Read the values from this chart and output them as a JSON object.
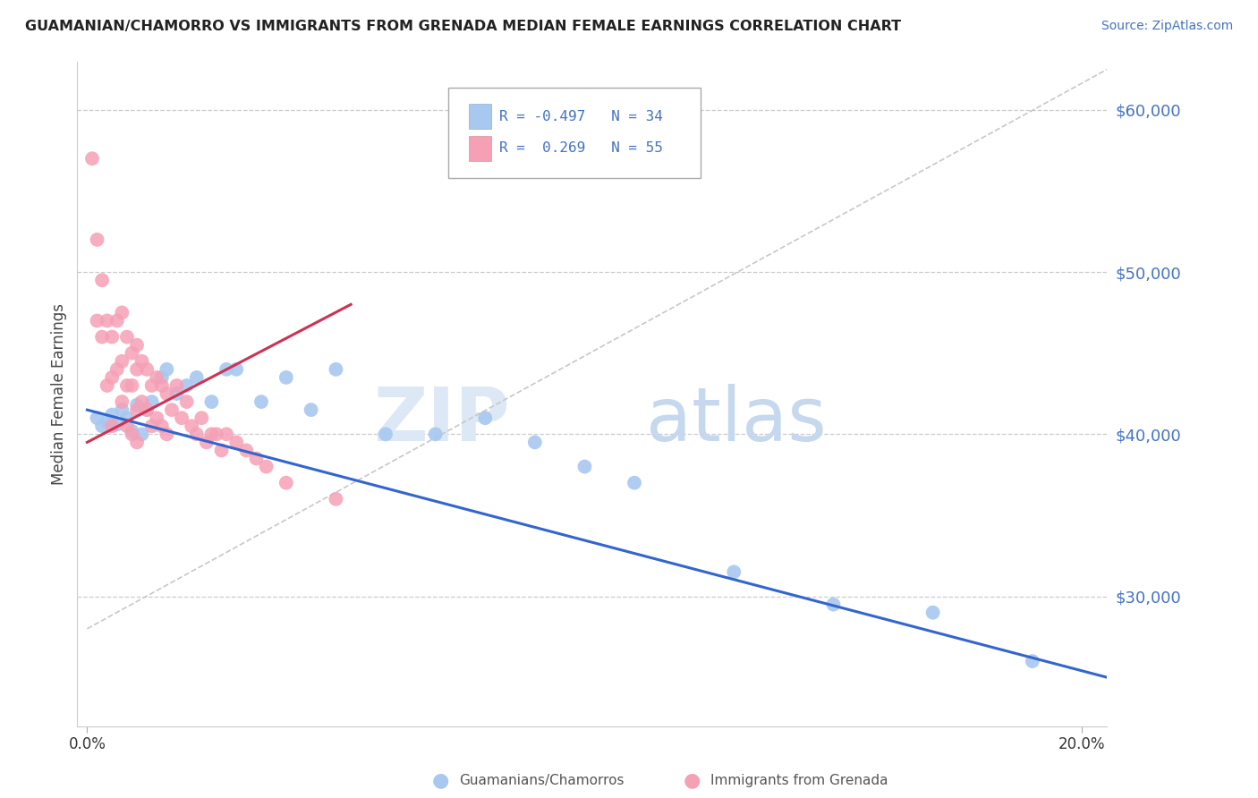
{
  "title": "GUAMANIAN/CHAMORRO VS IMMIGRANTS FROM GRENADA MEDIAN FEMALE EARNINGS CORRELATION CHART",
  "source": "Source: ZipAtlas.com",
  "ylabel": "Median Female Earnings",
  "xlabel": "",
  "xlim": [
    0.0,
    0.205
  ],
  "ylim": [
    22000,
    63000
  ],
  "yticks": [
    30000,
    40000,
    50000,
    60000
  ],
  "ytick_labels": [
    "$30,000",
    "$40,000",
    "$50,000",
    "$60,000"
  ],
  "xtick_labels": [
    "0.0%",
    "20.0%"
  ],
  "xtick_vals": [
    0.0,
    0.2
  ],
  "legend_label1": "Guamanians/Chamorros",
  "legend_label2": "Immigrants from Grenada",
  "R1": -0.497,
  "N1": 34,
  "R2": 0.269,
  "N2": 55,
  "color_blue": "#a8c8f0",
  "color_pink": "#f5a0b5",
  "line_color_blue": "#3366cc",
  "line_color_pink": "#cc3355",
  "blue_points_x": [
    0.002,
    0.003,
    0.004,
    0.005,
    0.006,
    0.007,
    0.008,
    0.009,
    0.01,
    0.011,
    0.012,
    0.013,
    0.015,
    0.016,
    0.018,
    0.02,
    0.022,
    0.025,
    0.028,
    0.03,
    0.035,
    0.04,
    0.045,
    0.05,
    0.06,
    0.07,
    0.08,
    0.09,
    0.1,
    0.11,
    0.13,
    0.15,
    0.17,
    0.19
  ],
  "blue_points_y": [
    41000,
    40500,
    40800,
    41200,
    40600,
    41500,
    41000,
    40200,
    41800,
    40000,
    41500,
    42000,
    43500,
    44000,
    42500,
    43000,
    43500,
    42000,
    44000,
    44000,
    42000,
    43500,
    41500,
    44000,
    40000,
    40000,
    41000,
    39500,
    38000,
    37000,
    31500,
    29500,
    29000,
    26000
  ],
  "pink_points_x": [
    0.001,
    0.002,
    0.002,
    0.003,
    0.003,
    0.004,
    0.004,
    0.005,
    0.005,
    0.005,
    0.006,
    0.006,
    0.007,
    0.007,
    0.007,
    0.008,
    0.008,
    0.008,
    0.009,
    0.009,
    0.009,
    0.01,
    0.01,
    0.01,
    0.01,
    0.011,
    0.011,
    0.012,
    0.012,
    0.013,
    0.013,
    0.014,
    0.014,
    0.015,
    0.015,
    0.016,
    0.016,
    0.017,
    0.018,
    0.019,
    0.02,
    0.021,
    0.022,
    0.023,
    0.024,
    0.025,
    0.026,
    0.027,
    0.028,
    0.03,
    0.032,
    0.034,
    0.036,
    0.04,
    0.05
  ],
  "pink_points_y": [
    57000,
    52000,
    47000,
    49500,
    46000,
    47000,
    43000,
    46000,
    43500,
    40500,
    47000,
    44000,
    47500,
    44500,
    42000,
    46000,
    43000,
    40500,
    45000,
    43000,
    40000,
    45500,
    44000,
    41500,
    39500,
    44500,
    42000,
    44000,
    41500,
    43000,
    40500,
    43500,
    41000,
    43000,
    40500,
    42500,
    40000,
    41500,
    43000,
    41000,
    42000,
    40500,
    40000,
    41000,
    39500,
    40000,
    40000,
    39000,
    40000,
    39500,
    39000,
    38500,
    38000,
    37000,
    36000
  ]
}
